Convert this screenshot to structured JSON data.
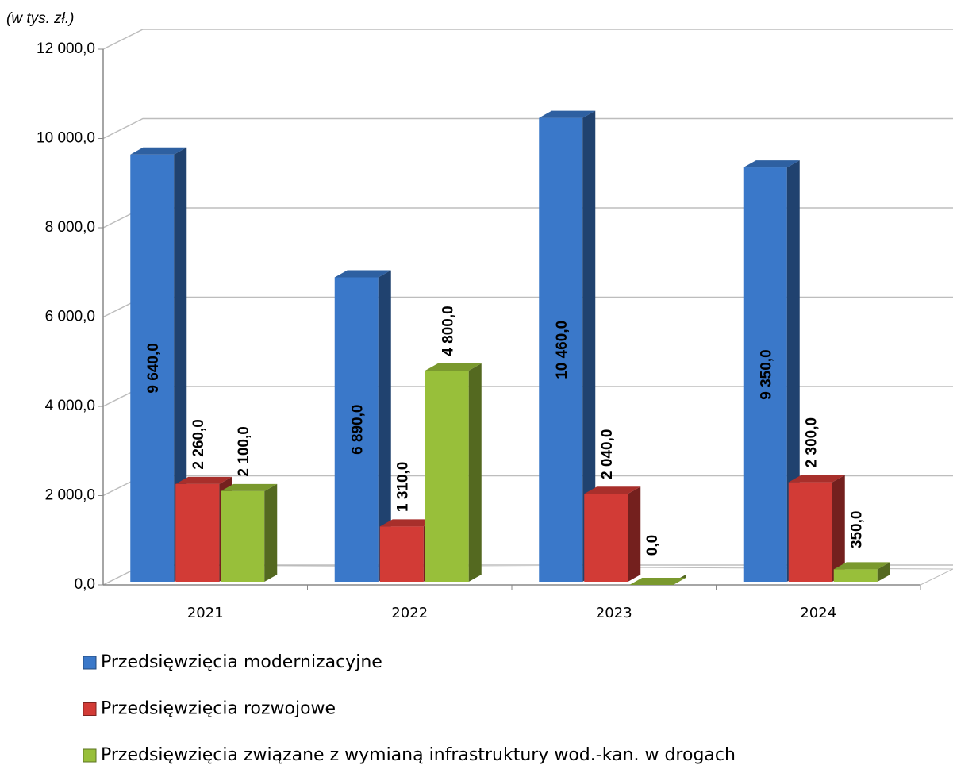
{
  "chart_data": {
    "type": "bar3d",
    "subtitle": "(w tys. zł.)",
    "categories": [
      "2021",
      "2022",
      "2023",
      "2024"
    ],
    "series": [
      {
        "name": "Przedsięwzięcia modernizacyjne",
        "color": "#3a78c9",
        "values": [
          9640,
          6890,
          10460,
          9350
        ],
        "value_labels": [
          "9 640,0",
          "6 890,0",
          "10 460,0",
          "9 350,0"
        ]
      },
      {
        "name": "Przedsięwzięcia rozwojowe",
        "color": "#d23b36",
        "values": [
          2260,
          1310,
          2040,
          2300
        ],
        "value_labels": [
          "2 260,0",
          "1 310,0",
          "2 040,0",
          "2 300,0"
        ]
      },
      {
        "name": "Przedsięwzięcia związane z wymianą infrastruktury wod.-kan. w drogach",
        "color": "#98bf3a",
        "values": [
          2100,
          4800,
          0,
          350
        ],
        "value_labels": [
          "2 100,0",
          "4 800,0",
          "0,0",
          "350,0"
        ]
      }
    ],
    "ylim": [
      0,
      12000
    ],
    "yticks": [
      {
        "value": 0,
        "label": "0,0"
      },
      {
        "value": 2000,
        "label": "2 000,0"
      },
      {
        "value": 4000,
        "label": "4 000,0"
      },
      {
        "value": 6000,
        "label": "6 000,0"
      },
      {
        "value": 8000,
        "label": "8 000,0"
      },
      {
        "value": 10000,
        "label": "10 000,0"
      },
      {
        "value": 12000,
        "label": "12 000,0"
      }
    ],
    "grid": true
  }
}
